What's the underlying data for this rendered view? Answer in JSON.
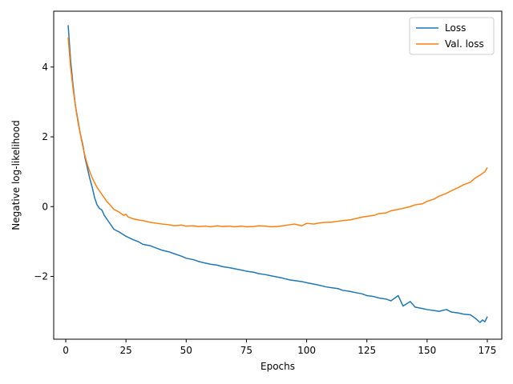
{
  "chart_data": {
    "type": "line",
    "title": "",
    "xlabel": "Epochs",
    "ylabel": "Negative log-likelihood",
    "xlim": [
      -5,
      181
    ],
    "ylim": [
      -3.8,
      5.6
    ],
    "xticks": [
      0,
      25,
      50,
      75,
      100,
      125,
      150,
      175
    ],
    "yticks": [
      -2,
      0,
      2,
      4
    ],
    "ytick_labels": [
      "−2",
      "0",
      "2",
      "4"
    ],
    "grid": false,
    "legend_position": "top-right",
    "series": [
      {
        "name": "Loss",
        "color": "#1f77b4",
        "x": [
          1,
          2,
          3,
          4,
          5,
          6,
          7,
          8,
          9,
          10,
          11,
          12,
          13,
          14,
          15,
          16,
          17,
          18,
          19,
          20,
          22,
          25,
          28,
          30,
          32,
          35,
          38,
          40,
          43,
          45,
          48,
          50,
          53,
          55,
          58,
          60,
          63,
          65,
          68,
          70,
          73,
          75,
          78,
          80,
          83,
          85,
          88,
          90,
          93,
          95,
          98,
          100,
          103,
          105,
          108,
          110,
          113,
          115,
          118,
          120,
          123,
          125,
          128,
          130,
          133,
          135,
          138,
          140,
          143,
          145,
          148,
          150,
          153,
          155,
          158,
          160,
          163,
          165,
          168,
          170,
          172,
          173,
          174,
          175
        ],
        "y": [
          5.2,
          4.2,
          3.5,
          2.9,
          2.5,
          2.1,
          1.8,
          1.4,
          1.1,
          0.8,
          0.55,
          0.25,
          0.05,
          -0.05,
          -0.1,
          -0.25,
          -0.35,
          -0.45,
          -0.55,
          -0.65,
          -0.72,
          -0.85,
          -0.95,
          -1.0,
          -1.08,
          -1.12,
          -1.2,
          -1.25,
          -1.3,
          -1.35,
          -1.42,
          -1.48,
          -1.52,
          -1.57,
          -1.62,
          -1.65,
          -1.68,
          -1.72,
          -1.75,
          -1.78,
          -1.82,
          -1.85,
          -1.88,
          -1.92,
          -1.95,
          -1.98,
          -2.02,
          -2.05,
          -2.1,
          -2.12,
          -2.15,
          -2.18,
          -2.22,
          -2.25,
          -2.3,
          -2.32,
          -2.35,
          -2.4,
          -2.43,
          -2.46,
          -2.5,
          -2.55,
          -2.58,
          -2.62,
          -2.65,
          -2.7,
          -2.55,
          -2.85,
          -2.72,
          -2.88,
          -2.92,
          -2.95,
          -2.98,
          -3.0,
          -2.95,
          -3.02,
          -3.05,
          -3.08,
          -3.1,
          -3.2,
          -3.32,
          -3.25,
          -3.3,
          -3.15
        ]
      },
      {
        "name": "Val. loss",
        "color": "#ff7f0e",
        "x": [
          1,
          2,
          3,
          4,
          5,
          6,
          7,
          8,
          9,
          10,
          11,
          12,
          13,
          14,
          15,
          16,
          17,
          18,
          19,
          20,
          22,
          24,
          25,
          26,
          28,
          30,
          32,
          35,
          38,
          40,
          43,
          45,
          48,
          50,
          53,
          55,
          58,
          60,
          63,
          65,
          68,
          70,
          73,
          75,
          78,
          80,
          83,
          85,
          88,
          90,
          93,
          95,
          98,
          100,
          103,
          105,
          108,
          110,
          113,
          115,
          118,
          120,
          123,
          125,
          128,
          130,
          133,
          135,
          138,
          140,
          143,
          145,
          148,
          150,
          153,
          155,
          158,
          160,
          163,
          165,
          168,
          170,
          172,
          173,
          174,
          175
        ],
        "y": [
          4.85,
          4.0,
          3.4,
          2.9,
          2.45,
          2.1,
          1.75,
          1.45,
          1.2,
          1.0,
          0.82,
          0.68,
          0.55,
          0.45,
          0.35,
          0.25,
          0.15,
          0.08,
          0.0,
          -0.08,
          -0.15,
          -0.25,
          -0.22,
          -0.3,
          -0.35,
          -0.38,
          -0.4,
          -0.45,
          -0.48,
          -0.5,
          -0.52,
          -0.55,
          -0.53,
          -0.56,
          -0.55,
          -0.57,
          -0.56,
          -0.58,
          -0.55,
          -0.57,
          -0.56,
          -0.58,
          -0.56,
          -0.58,
          -0.57,
          -0.55,
          -0.56,
          -0.58,
          -0.57,
          -0.55,
          -0.52,
          -0.5,
          -0.55,
          -0.48,
          -0.5,
          -0.47,
          -0.45,
          -0.45,
          -0.42,
          -0.4,
          -0.38,
          -0.35,
          -0.3,
          -0.28,
          -0.25,
          -0.2,
          -0.18,
          -0.12,
          -0.08,
          -0.05,
          0.0,
          0.05,
          0.08,
          0.15,
          0.22,
          0.3,
          0.38,
          0.45,
          0.55,
          0.62,
          0.7,
          0.82,
          0.9,
          0.95,
          1.0,
          1.12
        ]
      }
    ]
  }
}
